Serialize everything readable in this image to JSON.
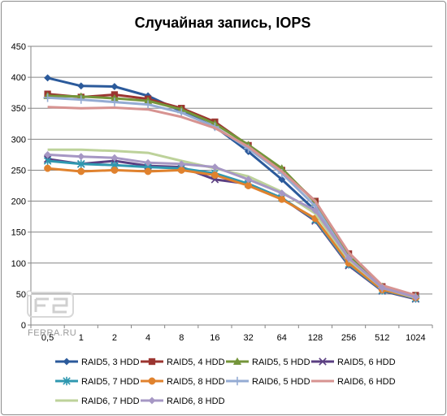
{
  "chart_data": {
    "type": "line",
    "title": "Случайная запись, IOPS",
    "categories": [
      "0,5",
      "1",
      "2",
      "4",
      "8",
      "16",
      "32",
      "64",
      "128",
      "256",
      "512",
      "1024"
    ],
    "ylim": [
      0,
      450
    ],
    "yticks": [
      0,
      50,
      100,
      150,
      200,
      250,
      300,
      350,
      400,
      450
    ],
    "grid": true,
    "legend_position": "bottom",
    "series": [
      {
        "name": "RAID5, 3 HDD",
        "color": "#2b5a9b",
        "marker": "diamond",
        "values": [
          399,
          386,
          385,
          370,
          345,
          320,
          280,
          235,
          185,
          105,
          58,
          42
        ]
      },
      {
        "name": "RAID5, 4 HDD",
        "color": "#9b3530",
        "marker": "square",
        "values": [
          373,
          368,
          372,
          365,
          350,
          328,
          290,
          250,
          200,
          115,
          62,
          48
        ]
      },
      {
        "name": "RAID5, 5 HDD",
        "color": "#74953a",
        "marker": "triangle",
        "values": [
          370,
          369,
          366,
          362,
          348,
          325,
          291,
          253,
          198,
          112,
          62,
          47
        ]
      },
      {
        "name": "RAID5, 6 HDD",
        "color": "#5b3f82",
        "marker": "x",
        "values": [
          268,
          260,
          265,
          257,
          255,
          235,
          228,
          205,
          168,
          96,
          55,
          42
        ]
      },
      {
        "name": "RAID5, 7 HDD",
        "color": "#2f98b0",
        "marker": "star",
        "values": [
          265,
          260,
          258,
          255,
          253,
          245,
          228,
          205,
          170,
          98,
          56,
          43
        ]
      },
      {
        "name": "RAID5, 8 HDD",
        "color": "#e0822e",
        "marker": "circle",
        "values": [
          253,
          248,
          250,
          248,
          250,
          242,
          225,
          203,
          172,
          100,
          57,
          44
        ]
      },
      {
        "name": "RAID6, 5 HDD",
        "color": "#94abd3",
        "marker": "plus",
        "values": [
          367,
          364,
          360,
          356,
          343,
          320,
          285,
          245,
          192,
          108,
          60,
          45
        ]
      },
      {
        "name": "RAID6, 6 HDD",
        "color": "#d79391",
        "marker": "none",
        "values": [
          352,
          350,
          351,
          348,
          336,
          318,
          288,
          248,
          200,
          117,
          64,
          48
        ]
      },
      {
        "name": "RAID6, 7 HDD",
        "color": "#bdd29a",
        "marker": "none",
        "values": [
          283,
          283,
          281,
          278,
          265,
          253,
          240,
          215,
          180,
          105,
          60,
          44
        ]
      },
      {
        "name": "RAID6, 8 HDD",
        "color": "#a697c4",
        "marker": "diamond",
        "values": [
          275,
          272,
          270,
          262,
          260,
          255,
          235,
          213,
          185,
          108,
          60,
          45
        ]
      }
    ]
  },
  "watermark": {
    "text": "FERRA.RU"
  }
}
